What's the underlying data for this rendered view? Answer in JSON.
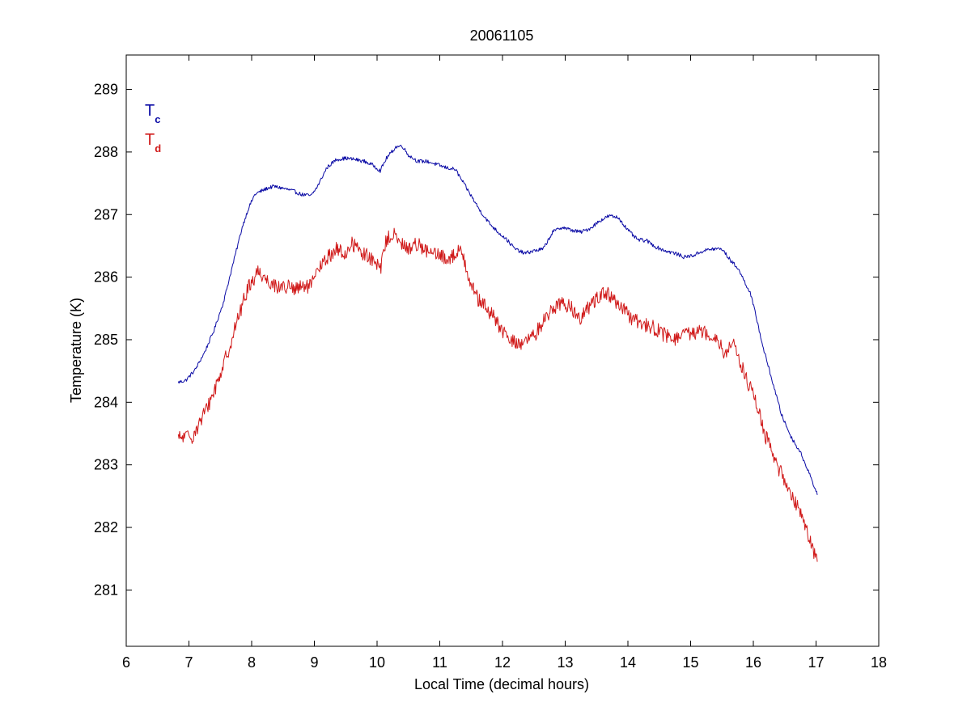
{
  "chart_data": {
    "type": "line",
    "title": "20061105",
    "xlabel": "Local Time (decimal hours)",
    "ylabel": "Temperature (K)",
    "xlim": [
      6,
      18
    ],
    "ylim": [
      280.1,
      289.55
    ],
    "x_ticks": [
      "6",
      "7",
      "8",
      "9",
      "10",
      "11",
      "12",
      "13",
      "14",
      "15",
      "16",
      "17",
      "18"
    ],
    "y_ticks": [
      "281",
      "282",
      "283",
      "284",
      "285",
      "286",
      "287",
      "288",
      "289"
    ],
    "grid": false,
    "legend_position": "top-left",
    "colors": {
      "axis": "#000000",
      "series_c": "#0a0aa5",
      "series_d": "#d01a1a"
    },
    "legend": [
      {
        "main": "T",
        "sub": "c",
        "color": "#0a0aa5"
      },
      {
        "main": "T",
        "sub": "d",
        "color": "#d01a1a"
      }
    ],
    "series": [
      {
        "key": "T_c",
        "color": "#0a0aa5",
        "jitter": 0.03,
        "x": [
          6.83,
          6.95,
          7.1,
          7.25,
          7.4,
          7.55,
          7.7,
          7.85,
          7.95,
          8.05,
          8.1,
          8.25,
          8.35,
          8.5,
          8.65,
          8.8,
          8.95,
          9.05,
          9.2,
          9.35,
          9.5,
          9.65,
          9.8,
          9.95,
          10.05,
          10.15,
          10.3,
          10.4,
          10.5,
          10.65,
          10.8,
          10.95,
          11.1,
          11.25,
          11.35,
          11.5,
          11.65,
          11.8,
          11.95,
          12.05,
          12.2,
          12.35,
          12.5,
          12.65,
          12.8,
          12.95,
          13.1,
          13.25,
          13.4,
          13.55,
          13.7,
          13.85,
          14.0,
          14.15,
          14.3,
          14.45,
          14.6,
          14.75,
          14.9,
          15.05,
          15.2,
          15.35,
          15.5,
          15.65,
          15.75,
          15.85,
          15.95,
          16.05,
          16.15,
          16.3,
          16.45,
          16.6,
          16.75,
          16.9,
          17.02
        ],
        "y": [
          284.32,
          284.35,
          284.52,
          284.8,
          285.15,
          285.6,
          286.2,
          286.8,
          287.1,
          287.32,
          287.35,
          287.42,
          287.45,
          287.42,
          287.38,
          287.32,
          287.3,
          287.45,
          287.75,
          287.88,
          287.9,
          287.88,
          287.85,
          287.78,
          287.7,
          287.9,
          288.08,
          288.1,
          287.95,
          287.85,
          287.85,
          287.8,
          287.75,
          287.72,
          287.55,
          287.3,
          287.05,
          286.85,
          286.7,
          286.62,
          286.45,
          286.38,
          286.42,
          286.45,
          286.72,
          286.8,
          286.75,
          286.72,
          286.78,
          286.9,
          286.98,
          286.95,
          286.75,
          286.6,
          286.58,
          286.48,
          286.42,
          286.38,
          286.32,
          286.35,
          286.42,
          286.45,
          286.45,
          286.25,
          286.15,
          285.95,
          285.75,
          285.35,
          284.9,
          284.35,
          283.8,
          283.45,
          283.2,
          282.85,
          282.52
        ]
      },
      {
        "key": "T_d",
        "color": "#d01a1a",
        "jitter": 0.12,
        "x": [
          6.83,
          6.95,
          7.05,
          7.2,
          7.35,
          7.5,
          7.65,
          7.8,
          7.95,
          8.05,
          8.1,
          8.25,
          8.4,
          8.55,
          8.7,
          8.85,
          8.95,
          9.05,
          9.2,
          9.35,
          9.5,
          9.6,
          9.75,
          9.9,
          10.05,
          10.15,
          10.25,
          10.35,
          10.5,
          10.65,
          10.8,
          10.95,
          11.1,
          11.25,
          11.35,
          11.45,
          11.6,
          11.75,
          11.9,
          12.05,
          12.2,
          12.35,
          12.5,
          12.65,
          12.8,
          12.95,
          13.1,
          13.25,
          13.4,
          13.55,
          13.65,
          13.8,
          13.95,
          14.1,
          14.25,
          14.4,
          14.55,
          14.7,
          14.85,
          15.0,
          15.15,
          15.3,
          15.45,
          15.55,
          15.65,
          15.7,
          15.8,
          15.9,
          16.0,
          16.1,
          16.2,
          16.35,
          16.5,
          16.65,
          16.8,
          16.9,
          17.02
        ],
        "y": [
          283.42,
          283.45,
          283.45,
          283.72,
          284.05,
          284.45,
          284.9,
          285.4,
          285.85,
          286.0,
          286.1,
          285.95,
          285.85,
          285.85,
          285.8,
          285.85,
          285.85,
          286.1,
          286.3,
          286.45,
          286.35,
          286.55,
          286.4,
          286.3,
          286.12,
          286.6,
          286.7,
          286.55,
          286.45,
          286.55,
          286.4,
          286.35,
          286.3,
          286.35,
          286.45,
          286.05,
          285.65,
          285.5,
          285.3,
          285.05,
          284.95,
          284.95,
          285.05,
          285.3,
          285.5,
          285.6,
          285.5,
          285.35,
          285.55,
          285.72,
          285.75,
          285.6,
          285.45,
          285.3,
          285.25,
          285.2,
          285.1,
          285.0,
          285.05,
          285.1,
          285.15,
          285.1,
          285.0,
          284.75,
          284.95,
          284.9,
          284.6,
          284.35,
          284.1,
          283.8,
          283.45,
          283.05,
          282.75,
          282.45,
          282.15,
          281.8,
          281.45
        ]
      }
    ]
  }
}
